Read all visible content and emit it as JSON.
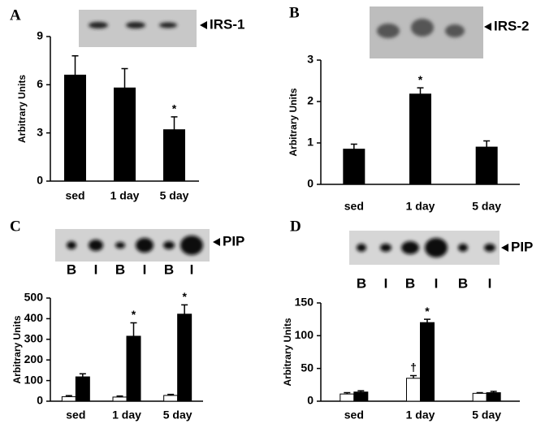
{
  "chart_data": [
    {
      "type": "bar",
      "panel": "A",
      "blot_label": "IRS-1",
      "ylabel": "Arbitrary Units",
      "categories": [
        "sed",
        "1 day",
        "5 day"
      ],
      "values": [
        6.6,
        5.8,
        3.2
      ],
      "errors": [
        1.2,
        1.2,
        0.8
      ],
      "value_marks": [
        null,
        null,
        "*"
      ],
      "color": "#000000",
      "ylim": [
        0,
        9
      ],
      "yticks": [
        0,
        3,
        6,
        9
      ]
    },
    {
      "type": "bar",
      "panel": "B",
      "blot_label": "IRS-2",
      "ylabel": "Arbitrary Units",
      "categories": [
        "sed",
        "1 day",
        "5 day"
      ],
      "values": [
        0.85,
        2.18,
        0.9
      ],
      "errors": [
        0.12,
        0.15,
        0.15
      ],
      "value_marks": [
        null,
        "*",
        null
      ],
      "color": "#000000",
      "ylim": [
        0,
        3
      ],
      "yticks": [
        0,
        1,
        2,
        3
      ]
    },
    {
      "type": "bar",
      "panel": "C",
      "blot_label": "PIP",
      "lane_labels": [
        "B",
        "I",
        "B",
        "I",
        "B",
        "I"
      ],
      "ylabel": "Arbitrary Units",
      "categories": [
        "sed",
        "1 day",
        "5 day"
      ],
      "series": [
        {
          "color": "#ffffff",
          "values": [
            22,
            20,
            28
          ],
          "errors": [
            5,
            5,
            5
          ]
        },
        {
          "color": "#000000",
          "values": [
            118,
            315,
            422
          ],
          "errors": [
            15,
            65,
            45
          ],
          "value_marks": [
            null,
            "*",
            "*"
          ]
        }
      ],
      "ylim": [
        0,
        500
      ],
      "yticks": [
        0,
        100,
        200,
        300,
        400,
        500
      ]
    },
    {
      "type": "bar",
      "panel": "D",
      "blot_label": "PIP",
      "lane_labels": [
        "B",
        "I",
        "B",
        "I",
        "B",
        "I"
      ],
      "ylabel": "Arbitrary Units",
      "categories": [
        "sed",
        "1 day",
        "5 day"
      ],
      "series": [
        {
          "color": "#ffffff",
          "values": [
            11,
            35,
            12
          ],
          "errors": [
            2,
            4,
            1
          ],
          "value_marks": [
            null,
            "†",
            null
          ]
        },
        {
          "color": "#000000",
          "values": [
            14,
            120,
            13
          ],
          "errors": [
            2,
            5,
            2
          ],
          "value_marks": [
            null,
            "*",
            null
          ]
        }
      ],
      "ylim": [
        0,
        150
      ],
      "yticks": [
        0,
        50,
        100,
        150
      ]
    }
  ]
}
